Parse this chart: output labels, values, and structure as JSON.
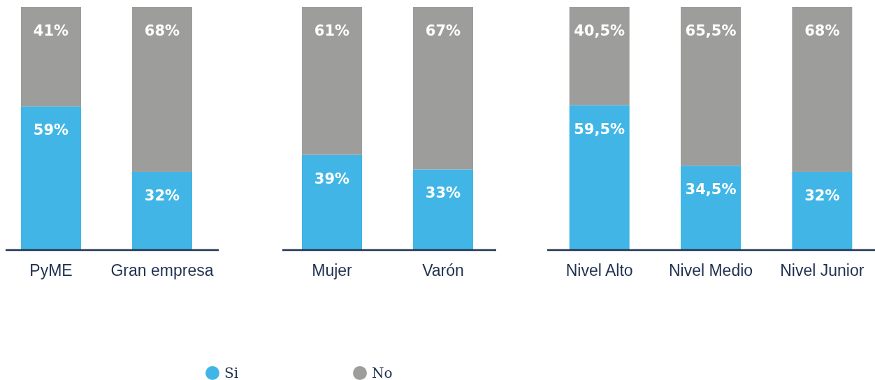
{
  "chart_data": [
    {
      "type": "bar",
      "stacked": true,
      "legend": "bottom",
      "categories": [
        "PyME",
        "Gran empresa"
      ],
      "series": [
        {
          "name": "Si",
          "color": "#41b6e6",
          "values": [
            59,
            32
          ],
          "value_labels": [
            "59%",
            "32%"
          ]
        },
        {
          "name": "No",
          "color": "#9d9d9c",
          "values": [
            41,
            68
          ],
          "value_labels": [
            "41%",
            "68%"
          ]
        }
      ]
    },
    {
      "type": "bar",
      "stacked": true,
      "categories": [
        "Mujer",
        "Varón"
      ],
      "series": [
        {
          "color": "#41b6e6",
          "values": [
            39,
            33
          ],
          "value_labels": [
            "39%",
            "33%"
          ]
        },
        {
          "color": "#9d9d9c",
          "values": [
            61,
            67
          ],
          "value_labels": [
            "61%",
            "67%"
          ]
        }
      ]
    },
    {
      "type": "bar",
      "stacked": true,
      "categories": [
        "Nivel Alto",
        "Nivel Medio",
        "Nivel Junior"
      ],
      "series": [
        {
          "color": "#41b6e6",
          "values": [
            59.5,
            34.5,
            32
          ],
          "value_labels": [
            "59,5%",
            "34,5%",
            "32%"
          ]
        },
        {
          "color": "#9d9d9c",
          "values": [
            40.5,
            65.5,
            68
          ],
          "value_labels": [
            "40,5%",
            "65,5%",
            "68%"
          ]
        }
      ]
    }
  ]
}
